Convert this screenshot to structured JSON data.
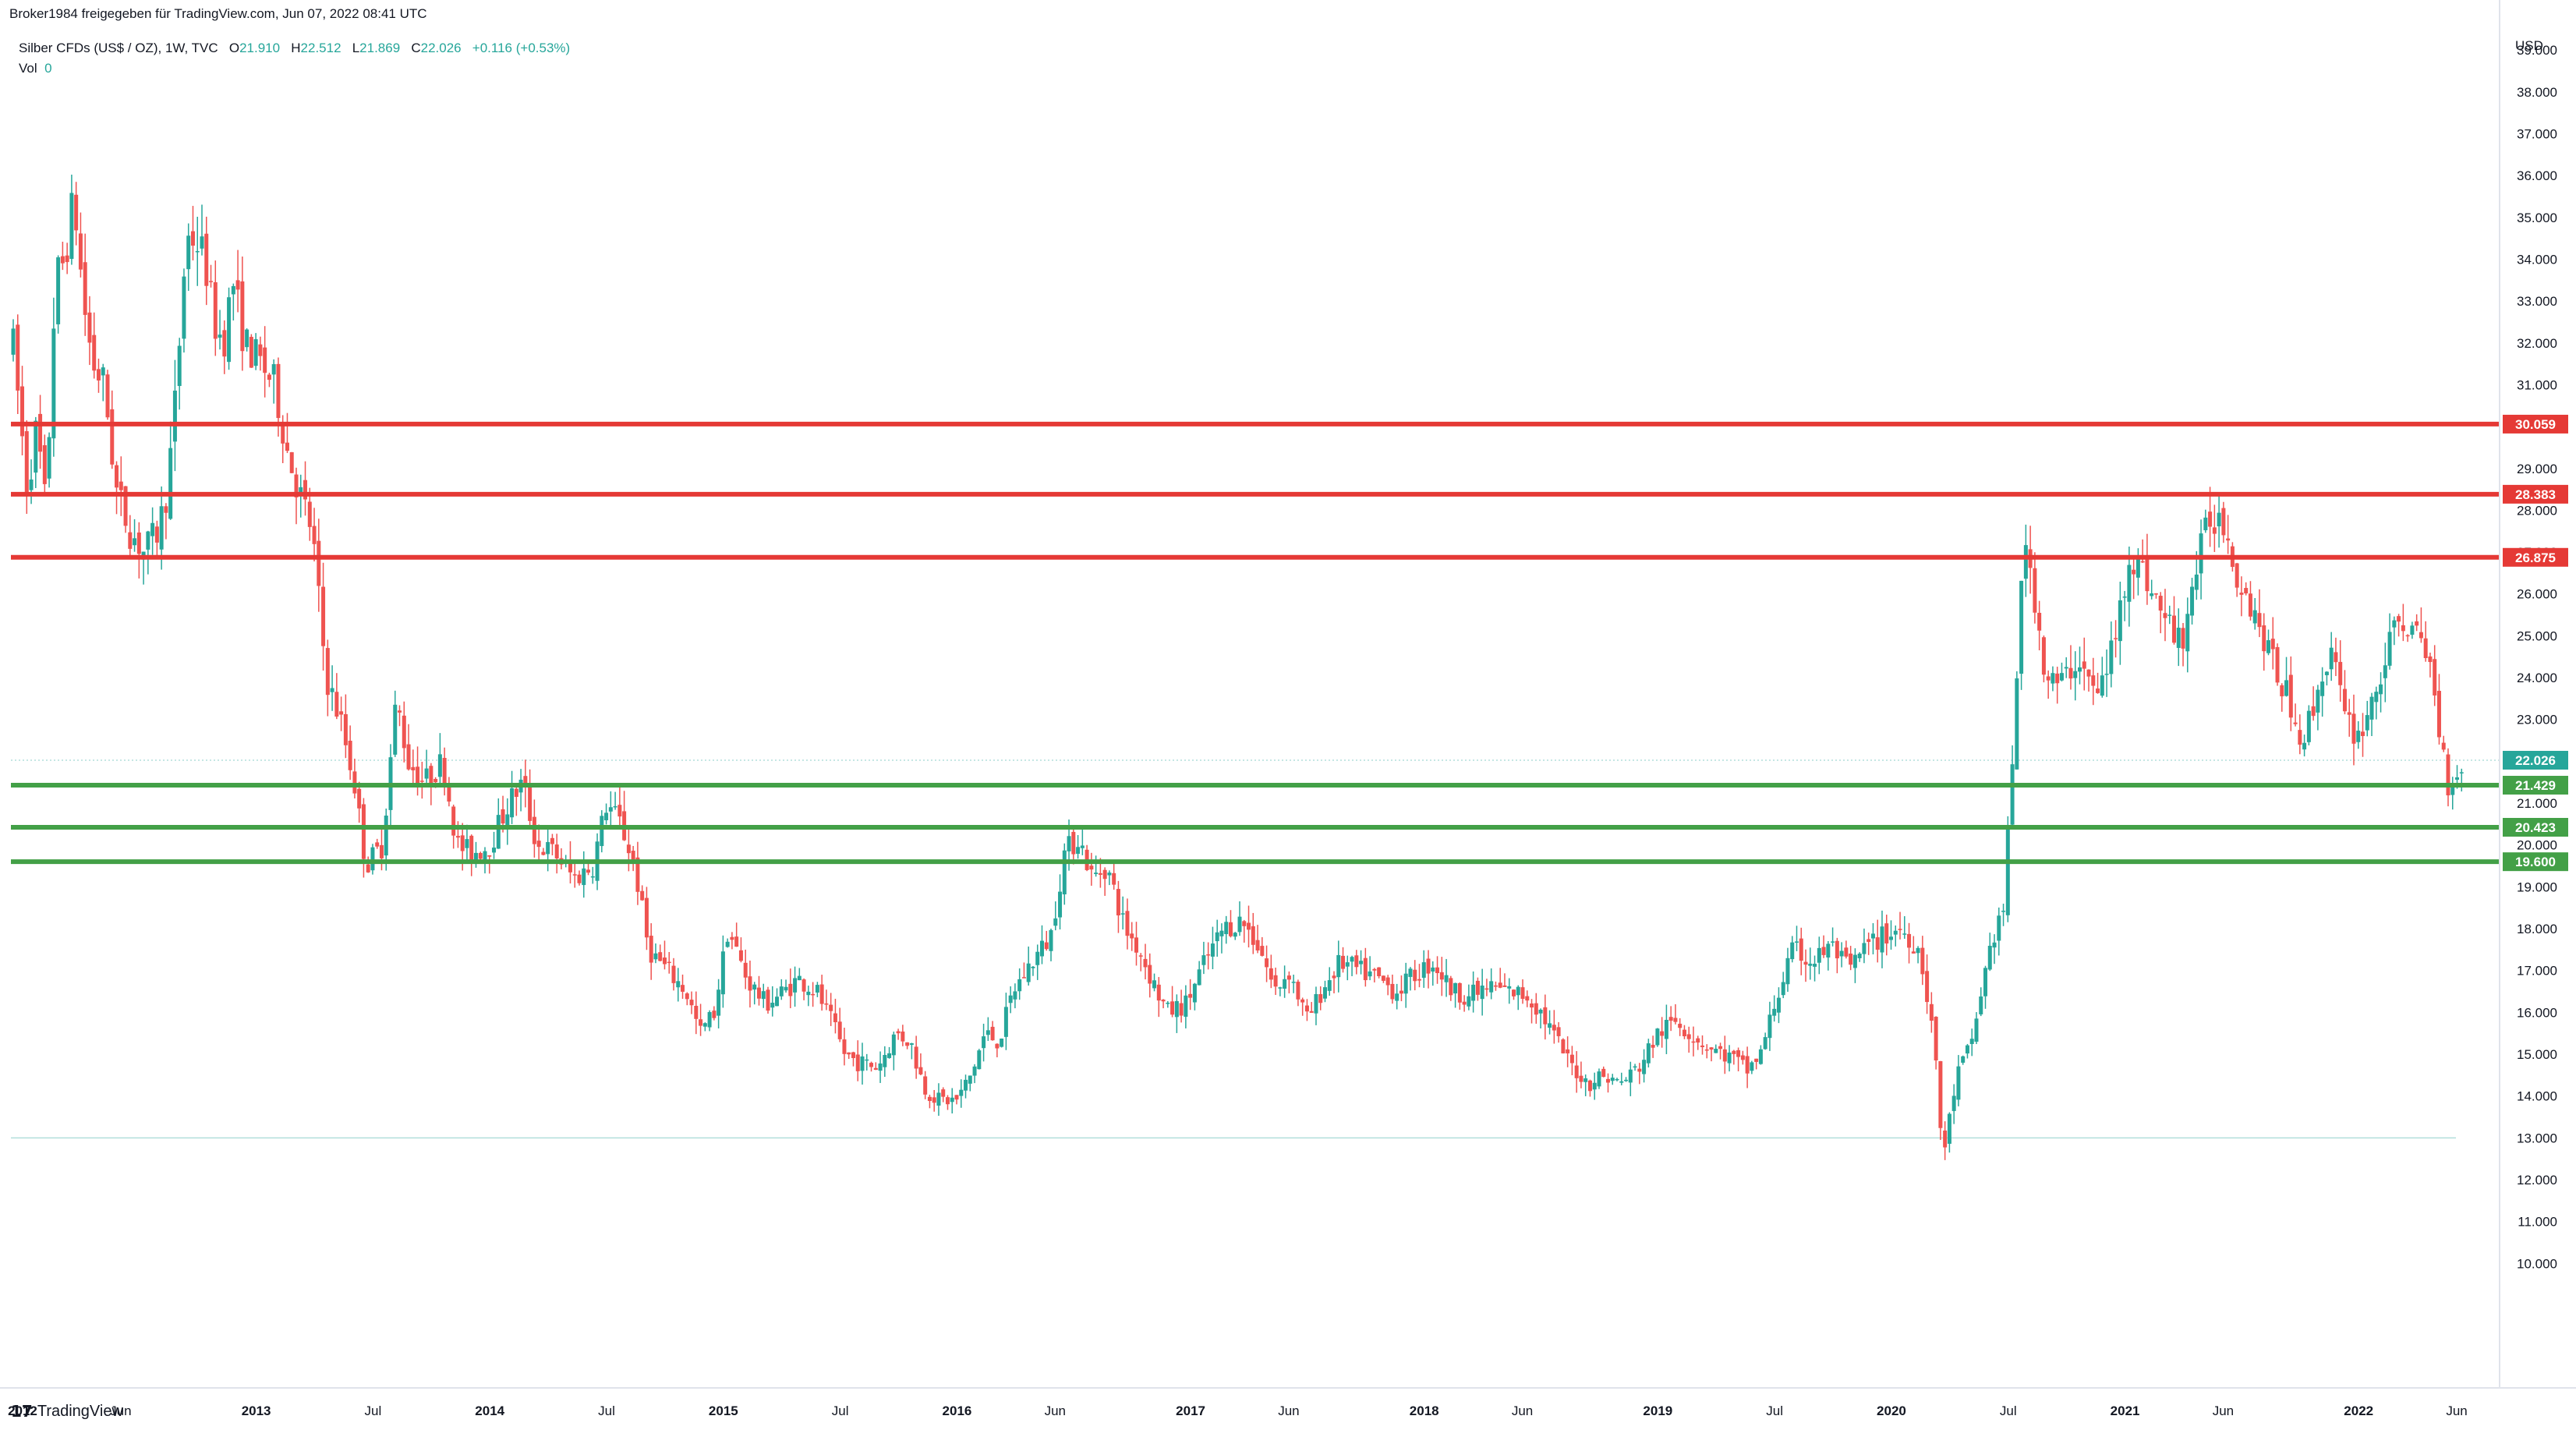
{
  "header": {
    "published": "Broker1984 freigegeben für TradingView.com, Jun 07, 2022 08:41 UTC"
  },
  "legend": {
    "symbol": "Silber CFDs (US$ / OZ), 1W, TVC",
    "o_label": "O",
    "o_value": "21.910",
    "h_label": "H",
    "h_value": "22.512",
    "l_label": "L",
    "l_value": "21.869",
    "c_label": "C",
    "c_value": "22.026",
    "change": "+0.116 (+0.53%)",
    "vol_label": "Vol",
    "vol_value": "0"
  },
  "branding": {
    "logo_mark": "17",
    "logo_text": "TradingView"
  },
  "colors": {
    "up": "#26a69a",
    "down": "#ef5350",
    "resistance": "#e53935",
    "support": "#43a047",
    "price_tag": "#26a69a",
    "grid": "#ffffff",
    "axis_text": "#131722"
  },
  "chart_data": {
    "type": "candlestick",
    "interval": "1W",
    "currency": "USD",
    "ylim": [
      10,
      40
    ],
    "y_ticks": [
      "10.000",
      "11.000",
      "12.000",
      "13.000",
      "14.000",
      "15.000",
      "16.000",
      "17.000",
      "18.000",
      "19.000",
      "20.000",
      "21.000",
      "22.000",
      "23.000",
      "24.000",
      "25.000",
      "26.000",
      "27.000",
      "28.000",
      "29.000",
      "30.000",
      "31.000",
      "32.000",
      "33.000",
      "34.000",
      "35.000",
      "36.000",
      "37.000",
      "38.000",
      "39.000"
    ],
    "x_ticks": [
      {
        "label": "2012",
        "t": 2012.0
      },
      {
        "label": "Jun",
        "t": 2012.42
      },
      {
        "label": "2013",
        "t": 2013.0
      },
      {
        "label": "Jul",
        "t": 2013.5
      },
      {
        "label": "2014",
        "t": 2014.0
      },
      {
        "label": "Jul",
        "t": 2014.5
      },
      {
        "label": "2015",
        "t": 2015.0
      },
      {
        "label": "Jul",
        "t": 2015.5
      },
      {
        "label": "2016",
        "t": 2016.0
      },
      {
        "label": "Jun",
        "t": 2016.42
      },
      {
        "label": "2017",
        "t": 2017.0
      },
      {
        "label": "Jun",
        "t": 2017.42
      },
      {
        "label": "2018",
        "t": 2018.0
      },
      {
        "label": "Jun",
        "t": 2018.42
      },
      {
        "label": "2019",
        "t": 2019.0
      },
      {
        "label": "Jul",
        "t": 2019.5
      },
      {
        "label": "2020",
        "t": 2020.0
      },
      {
        "label": "Jul",
        "t": 2020.5
      },
      {
        "label": "2021",
        "t": 2021.0
      },
      {
        "label": "Jun",
        "t": 2021.42
      },
      {
        "label": "2022",
        "t": 2022.0
      },
      {
        "label": "Jun",
        "t": 2022.42
      }
    ],
    "resistance_levels": [
      {
        "value": 30.059,
        "label": "30.059"
      },
      {
        "value": 28.383,
        "label": "28.383"
      },
      {
        "value": 26.875,
        "label": "26.875"
      }
    ],
    "support_levels": [
      {
        "value": 21.429,
        "label": "21.429"
      },
      {
        "value": 20.423,
        "label": "20.423"
      },
      {
        "value": 19.6,
        "label": "19.600"
      }
    ],
    "last_price": {
      "value": 22.026,
      "label": "22.026"
    },
    "reference_line": 13.0,
    "price_path": [
      [
        2011.95,
        32.5
      ],
      [
        2012.02,
        28.5
      ],
      [
        2012.06,
        30.0
      ],
      [
        2012.1,
        28.0
      ],
      [
        2012.14,
        33.5
      ],
      [
        2012.18,
        34.0
      ],
      [
        2012.22,
        35.5
      ],
      [
        2012.26,
        33.0
      ],
      [
        2012.3,
        31.5
      ],
      [
        2012.35,
        31.0
      ],
      [
        2012.4,
        28.5
      ],
      [
        2012.46,
        27.5
      ],
      [
        2012.52,
        27.0
      ],
      [
        2012.58,
        27.5
      ],
      [
        2012.62,
        28.5
      ],
      [
        2012.66,
        31.0
      ],
      [
        2012.7,
        34.5
      ],
      [
        2012.74,
        34.5
      ],
      [
        2012.78,
        34.0
      ],
      [
        2012.82,
        32.5
      ],
      [
        2012.86,
        32.0
      ],
      [
        2012.9,
        33.5
      ],
      [
        2012.95,
        32.0
      ],
      [
        2013.02,
        31.5
      ],
      [
        2013.08,
        31.0
      ],
      [
        2013.13,
        29.5
      ],
      [
        2013.18,
        28.5
      ],
      [
        2013.24,
        27.5
      ],
      [
        2013.3,
        24.0
      ],
      [
        2013.36,
        23.0
      ],
      [
        2013.42,
        21.5
      ],
      [
        2013.47,
        19.5
      ],
      [
        2013.54,
        20.0
      ],
      [
        2013.6,
        23.5
      ],
      [
        2013.65,
        22.0
      ],
      [
        2013.72,
        21.5
      ],
      [
        2013.8,
        22.0
      ],
      [
        2013.86,
        20.0
      ],
      [
        2013.92,
        19.8
      ],
      [
        2014.0,
        20.0
      ],
      [
        2014.08,
        21.0
      ],
      [
        2014.14,
        21.5
      ],
      [
        2014.2,
        20.0
      ],
      [
        2014.28,
        19.8
      ],
      [
        2014.36,
        19.2
      ],
      [
        2014.44,
        19.5
      ],
      [
        2014.5,
        21.0
      ],
      [
        2014.56,
        20.5
      ],
      [
        2014.62,
        19.5
      ],
      [
        2014.68,
        17.5
      ],
      [
        2014.76,
        17.0
      ],
      [
        2014.84,
        16.5
      ],
      [
        2014.9,
        15.5
      ],
      [
        2014.96,
        16.0
      ],
      [
        2015.02,
        18.0
      ],
      [
        2015.1,
        16.8
      ],
      [
        2015.18,
        16.2
      ],
      [
        2015.26,
        16.5
      ],
      [
        2015.32,
        16.8
      ],
      [
        2015.4,
        16.5
      ],
      [
        2015.46,
        15.8
      ],
      [
        2015.52,
        15.0
      ],
      [
        2015.58,
        14.8
      ],
      [
        2015.66,
        14.7
      ],
      [
        2015.74,
        15.5
      ],
      [
        2015.8,
        15.3
      ],
      [
        2015.86,
        14.2
      ],
      [
        2015.92,
        13.9
      ],
      [
        2016.0,
        13.9
      ],
      [
        2016.06,
        14.5
      ],
      [
        2016.12,
        15.5
      ],
      [
        2016.18,
        15.3
      ],
      [
        2016.24,
        16.5
      ],
      [
        2016.32,
        17.2
      ],
      [
        2016.4,
        17.8
      ],
      [
        2016.46,
        19.8
      ],
      [
        2016.52,
        20.2
      ],
      [
        2016.58,
        19.2
      ],
      [
        2016.64,
        19.5
      ],
      [
        2016.72,
        18.0
      ],
      [
        2016.78,
        17.5
      ],
      [
        2016.84,
        16.7
      ],
      [
        2016.9,
        16.0
      ],
      [
        2016.98,
        16.2
      ],
      [
        2017.06,
        17.2
      ],
      [
        2017.14,
        18.0
      ],
      [
        2017.22,
        18.2
      ],
      [
        2017.3,
        17.5
      ],
      [
        2017.36,
        16.5
      ],
      [
        2017.42,
        17.0
      ],
      [
        2017.5,
        15.8
      ],
      [
        2017.56,
        16.5
      ],
      [
        2017.64,
        17.2
      ],
      [
        2017.72,
        17.0
      ],
      [
        2017.8,
        16.8
      ],
      [
        2017.88,
        16.5
      ],
      [
        2017.96,
        16.9
      ],
      [
        2018.04,
        17.2
      ],
      [
        2018.12,
        16.5
      ],
      [
        2018.2,
        16.4
      ],
      [
        2018.28,
        16.6
      ],
      [
        2018.36,
        16.5
      ],
      [
        2018.44,
        16.4
      ],
      [
        2018.5,
        16.0
      ],
      [
        2018.56,
        15.4
      ],
      [
        2018.62,
        14.8
      ],
      [
        2018.7,
        14.3
      ],
      [
        2018.76,
        14.5
      ],
      [
        2018.84,
        14.3
      ],
      [
        2018.92,
        14.7
      ],
      [
        2019.0,
        15.5
      ],
      [
        2019.08,
        15.8
      ],
      [
        2019.16,
        15.4
      ],
      [
        2019.24,
        15.1
      ],
      [
        2019.32,
        14.9
      ],
      [
        2019.38,
        14.6
      ],
      [
        2019.44,
        15.0
      ],
      [
        2019.5,
        16.2
      ],
      [
        2019.58,
        17.5
      ],
      [
        2019.66,
        17.2
      ],
      [
        2019.74,
        17.6
      ],
      [
        2019.82,
        17.0
      ],
      [
        2019.88,
        17.5
      ],
      [
        2019.96,
        17.8
      ],
      [
        2020.04,
        18.0
      ],
      [
        2020.12,
        17.5
      ],
      [
        2020.18,
        15.5
      ],
      [
        2020.22,
        12.5
      ],
      [
        2020.28,
        14.5
      ],
      [
        2020.34,
        15.2
      ],
      [
        2020.42,
        17.5
      ],
      [
        2020.48,
        18.5
      ],
      [
        2020.52,
        22.0
      ],
      [
        2020.56,
        27.0
      ],
      [
        2020.6,
        26.5
      ],
      [
        2020.66,
        24.0
      ],
      [
        2020.72,
        23.8
      ],
      [
        2020.8,
        24.5
      ],
      [
        2020.88,
        23.5
      ],
      [
        2020.96,
        25.0
      ],
      [
        2021.02,
        27.0
      ],
      [
        2021.08,
        26.5
      ],
      [
        2021.16,
        25.5
      ],
      [
        2021.24,
        24.8
      ],
      [
        2021.3,
        26.5
      ],
      [
        2021.36,
        27.8
      ],
      [
        2021.42,
        27.8
      ],
      [
        2021.48,
        26.5
      ],
      [
        2021.56,
        25.5
      ],
      [
        2021.62,
        24.5
      ],
      [
        2021.7,
        23.5
      ],
      [
        2021.76,
        22.5
      ],
      [
        2021.82,
        23.5
      ],
      [
        2021.88,
        24.8
      ],
      [
        2021.94,
        23.0
      ],
      [
        2022.0,
        22.6
      ],
      [
        2022.06,
        23.5
      ],
      [
        2022.12,
        24.5
      ],
      [
        2022.18,
        25.5
      ],
      [
        2022.24,
        25.0
      ],
      [
        2022.3,
        24.5
      ],
      [
        2022.34,
        23.0
      ],
      [
        2022.38,
        21.5
      ],
      [
        2022.42,
        21.7
      ],
      [
        2022.45,
        22.03
      ]
    ]
  }
}
